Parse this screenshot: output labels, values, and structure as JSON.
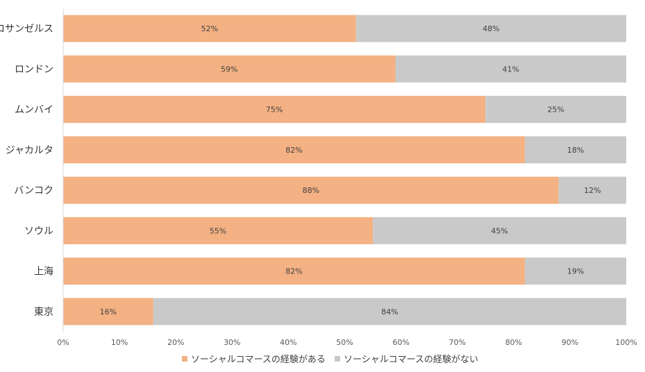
{
  "chart_data": {
    "type": "bar",
    "orientation": "horizontal",
    "stacked": "percent",
    "categories": [
      "ロサンゼルス",
      "ロンドン",
      "ムンバイ",
      "ジャカルタ",
      "バンコク",
      "ソウル",
      "上海",
      "東京"
    ],
    "series": [
      {
        "name": "ソーシャルコマースの経験がある",
        "color": "#f4b183",
        "values": [
          52,
          59,
          75,
          82,
          88,
          55,
          82,
          16
        ],
        "labels": [
          "52%",
          "59%",
          "75%",
          "82%",
          "88%",
          "55%",
          "82%",
          "16%"
        ]
      },
      {
        "name": "ソーシャルコマースの経験がない",
        "color": "#c9c9c9",
        "values": [
          48,
          41,
          25,
          18,
          12,
          45,
          19,
          84
        ],
        "labels": [
          "48%",
          "41%",
          "25%",
          "18%",
          "12%",
          "45%",
          "19%",
          "84%"
        ]
      }
    ],
    "xlim": [
      0,
      100
    ],
    "xticks": [
      "0%",
      "10%",
      "20%",
      "30%",
      "40%",
      "50%",
      "60%",
      "70%",
      "80%",
      "90%",
      "100%"
    ],
    "grid": false,
    "legend": "bottom",
    "axis_color": "#d9d9d9"
  }
}
